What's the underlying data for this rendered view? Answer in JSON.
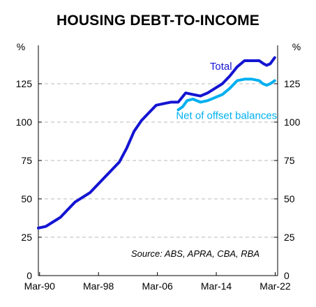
{
  "chart_data": {
    "type": "line",
    "title": "HOUSING DEBT-TO-INCOME",
    "ylabel_left": "%",
    "ylabel_right": "%",
    "ylim": [
      0,
      150
    ],
    "yticks": [
      0,
      25,
      50,
      75,
      100,
      125
    ],
    "xlim": [
      1990.0,
      2022.5
    ],
    "xticks": [
      {
        "x": 1990.167,
        "label": "Mar-90"
      },
      {
        "x": 1998.167,
        "label": "Mar-98"
      },
      {
        "x": 2006.167,
        "label": "Mar-06"
      },
      {
        "x": 2014.167,
        "label": "Mar-14"
      },
      {
        "x": 2022.167,
        "label": "Mar-22"
      }
    ],
    "grid": "horizontal dashed",
    "source": "Source: ABS, APRA, CBA, RBA",
    "series": [
      {
        "name": "Total",
        "color": "#1414d2",
        "points": [
          [
            1990.0,
            31
          ],
          [
            1991.0,
            32
          ],
          [
            1992.0,
            35
          ],
          [
            1993.0,
            38
          ],
          [
            1994.0,
            43
          ],
          [
            1995.0,
            48
          ],
          [
            1996.0,
            51
          ],
          [
            1997.0,
            54
          ],
          [
            1998.0,
            59
          ],
          [
            1999.0,
            64
          ],
          [
            2000.0,
            69
          ],
          [
            2001.0,
            74
          ],
          [
            2002.0,
            83
          ],
          [
            2003.0,
            94
          ],
          [
            2004.0,
            101
          ],
          [
            2005.0,
            106
          ],
          [
            2006.0,
            111
          ],
          [
            2007.0,
            112
          ],
          [
            2008.0,
            113
          ],
          [
            2009.0,
            113
          ],
          [
            2010.0,
            119
          ],
          [
            2011.0,
            118
          ],
          [
            2012.0,
            117
          ],
          [
            2013.0,
            119
          ],
          [
            2014.0,
            122
          ],
          [
            2015.0,
            125
          ],
          [
            2016.0,
            130
          ],
          [
            2017.0,
            136
          ],
          [
            2018.0,
            140
          ],
          [
            2019.0,
            140
          ],
          [
            2020.0,
            140
          ],
          [
            2020.6,
            138
          ],
          [
            2021.0,
            137
          ],
          [
            2021.5,
            138
          ],
          [
            2022.1,
            142
          ]
        ]
      },
      {
        "name": "Net of offset balances",
        "color": "#00b0f0",
        "points": [
          [
            2009.0,
            108
          ],
          [
            2009.6,
            110
          ],
          [
            2010.2,
            114
          ],
          [
            2011.0,
            115
          ],
          [
            2012.0,
            113
          ],
          [
            2013.0,
            114
          ],
          [
            2014.0,
            116
          ],
          [
            2015.0,
            118
          ],
          [
            2016.0,
            122
          ],
          [
            2017.0,
            127
          ],
          [
            2018.0,
            128
          ],
          [
            2019.0,
            128
          ],
          [
            2020.0,
            127
          ],
          [
            2020.5,
            125
          ],
          [
            2021.0,
            124
          ],
          [
            2021.5,
            125
          ],
          [
            2022.1,
            127
          ]
        ]
      }
    ]
  }
}
